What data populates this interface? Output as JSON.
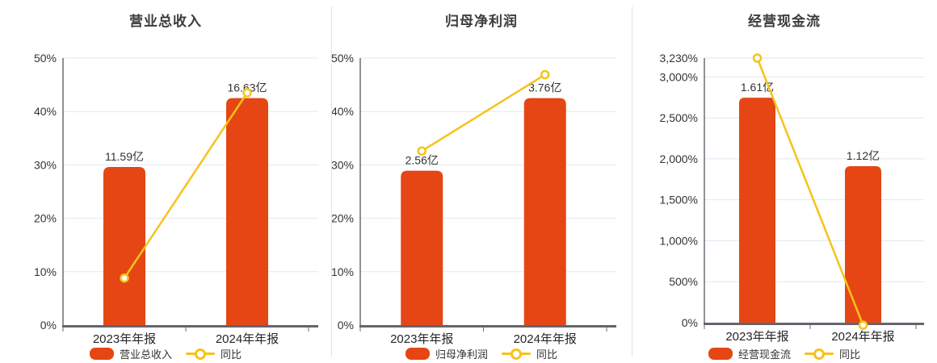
{
  "colors": {
    "bar": "#e54614",
    "line": "#f5c31a",
    "marker_fill": "#ffffff",
    "grid": "#e3e7f0",
    "axis": "#6b6d76",
    "baseline": "#63656e",
    "tick_text": "#333333",
    "bar_label_text": "#333333",
    "category_text": "#26262b",
    "title_text": "#3c3c3c",
    "divider": "#e3e3e3"
  },
  "chart_data": [
    {
      "type": "bar+line",
      "title": "营业总收入",
      "categories": [
        "2023年年报",
        "2024年年报"
      ],
      "bar_series": {
        "name": "营业总收入",
        "unit": "亿",
        "values": [
          11.59,
          16.63
        ],
        "labels": [
          "11.59亿",
          "16.63亿"
        ],
        "plot_values_on_pct_axis": [
          29.6,
          42.5
        ]
      },
      "line_series": {
        "name": "同比",
        "values_pct": [
          8.8,
          43.5
        ]
      },
      "y_axis": {
        "min": 0,
        "max": 50,
        "unit": "%",
        "ticks": [
          {
            "label": "0%",
            "value": 0
          },
          {
            "label": "10%",
            "value": 10
          },
          {
            "label": "20%",
            "value": 20
          },
          {
            "label": "30%",
            "value": 30
          },
          {
            "label": "40%",
            "value": 40
          },
          {
            "label": "50%",
            "value": 50
          }
        ]
      },
      "grid": true,
      "legend_position": "bottom"
    },
    {
      "type": "bar+line",
      "title": "归母净利润",
      "categories": [
        "2023年年报",
        "2024年年报"
      ],
      "bar_series": {
        "name": "归母净利润",
        "unit": "亿",
        "values": [
          2.56,
          3.76
        ],
        "labels": [
          "2.56亿",
          "3.76亿"
        ],
        "plot_values_on_pct_axis": [
          28.9,
          42.5
        ]
      },
      "line_series": {
        "name": "同比",
        "values_pct": [
          32.6,
          46.9
        ]
      },
      "y_axis": {
        "min": 0,
        "max": 50,
        "unit": "%",
        "ticks": [
          {
            "label": "0%",
            "value": 0
          },
          {
            "label": "10%",
            "value": 10
          },
          {
            "label": "20%",
            "value": 20
          },
          {
            "label": "30%",
            "value": 30
          },
          {
            "label": "40%",
            "value": 40
          },
          {
            "label": "50%",
            "value": 50
          }
        ]
      },
      "grid": true,
      "legend_position": "bottom"
    },
    {
      "type": "bar+line",
      "title": "经营现金流",
      "categories": [
        "2023年年报",
        "2024年年报"
      ],
      "bar_series": {
        "name": "经营现金流",
        "unit": "亿",
        "values": [
          1.61,
          1.12
        ],
        "labels": [
          "1.61亿",
          "1.12亿"
        ],
        "plot_values_on_pct_axis": [
          2746,
          1910
        ]
      },
      "line_series": {
        "name": "同比",
        "values_pct": [
          3230,
          -30.4
        ]
      },
      "y_axis": {
        "min": 0,
        "max": 3230,
        "unit": "%",
        "ticks": [
          {
            "label": "0%",
            "value": 0
          },
          {
            "label": "500%",
            "value": 500
          },
          {
            "label": "1,000%",
            "value": 1000
          },
          {
            "label": "1,500%",
            "value": 1500
          },
          {
            "label": "2,000%",
            "value": 2000
          },
          {
            "label": "2,500%",
            "value": 2500
          },
          {
            "label": "3,000%",
            "value": 3000
          },
          {
            "label": "3,230%",
            "value": 3230
          }
        ]
      },
      "grid": true,
      "legend_position": "bottom"
    }
  ]
}
